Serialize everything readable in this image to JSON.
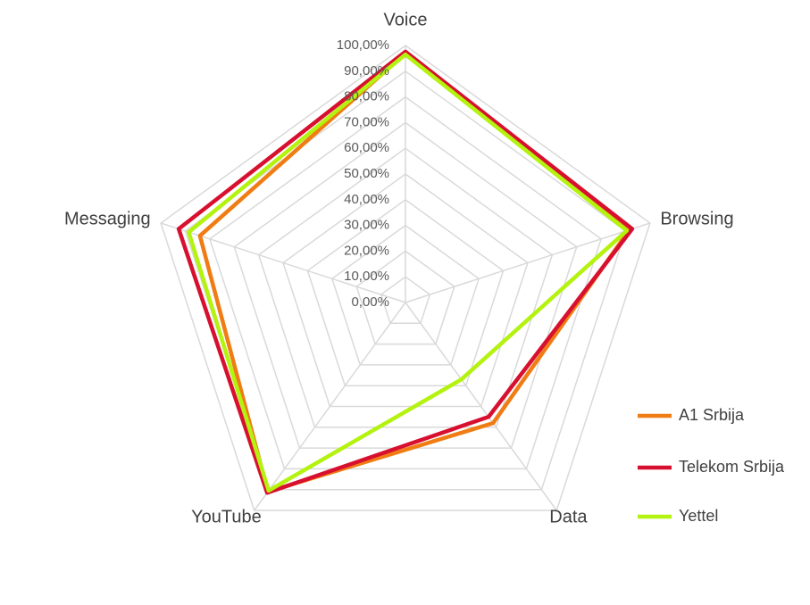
{
  "chart_data": {
    "type": "radar",
    "categories": [
      "Voice",
      "Browsing",
      "Data",
      "YouTube",
      "Messaging"
    ],
    "series": [
      {
        "name": "A1 Srbija",
        "color": "#f07c14",
        "values": [
          97,
          91.5,
          58,
          91,
          84
        ]
      },
      {
        "name": "Telekom Srbija",
        "color": "#d8102f",
        "values": [
          97.6,
          92.7,
          55,
          91.5,
          92.7
        ]
      },
      {
        "name": "Yettel",
        "color": "#b4f20f",
        "values": [
          96.5,
          90.5,
          37,
          90.5,
          88.6
        ]
      }
    ],
    "ylim": [
      0,
      100
    ],
    "yticks": [
      {
        "value": 0,
        "label": "0,00%"
      },
      {
        "value": 10,
        "label": "10,00%"
      },
      {
        "value": 20,
        "label": "20,00%"
      },
      {
        "value": 30,
        "label": "30,00%"
      },
      {
        "value": 40,
        "label": "40,00%"
      },
      {
        "value": 50,
        "label": "50,00%"
      },
      {
        "value": 60,
        "label": "60,00%"
      },
      {
        "value": 70,
        "label": "70,00%"
      },
      {
        "value": 80,
        "label": "80,00%"
      },
      {
        "value": 90,
        "label": "90,00%"
      },
      {
        "value": 100,
        "label": "100,00%"
      }
    ],
    "grid": true,
    "legend": "right"
  }
}
